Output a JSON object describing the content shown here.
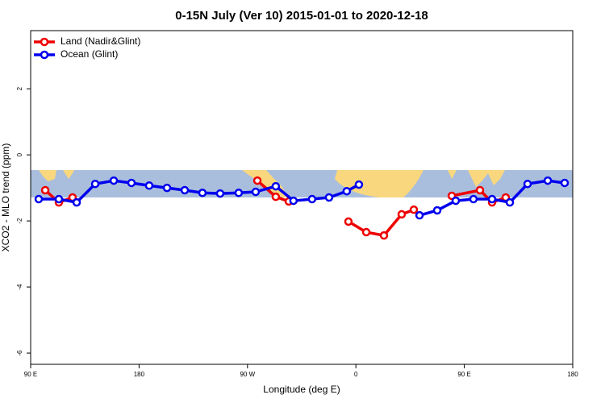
{
  "chart_data": {
    "type": "line",
    "title": "0-15N July (Ver 10)   2015-01-01 to 2020-12-18",
    "xlabel": "Longitude (deg E)",
    "ylabel": "XCO2 - MLO trend (ppm)",
    "xlim": [
      90,
      540
    ],
    "xticks": [
      {
        "value": 90,
        "label": "90 E"
      },
      180,
      {
        "value": 270,
        "label": "90 W"
      },
      {
        "value": 360,
        "label": "0"
      },
      {
        "value": 450,
        "label": "90 E"
      },
      {
        "value": 540,
        "label": "180"
      }
    ],
    "ylim": [
      -6.34,
      3.76
    ],
    "yticks": [
      -6,
      -4,
      -2,
      0,
      2
    ],
    "legend": "top-left",
    "series": [
      {
        "name": "Land (Nadir&Glint)",
        "color": "#ee0000",
        "x": [
          102.1,
          113.4,
          124.8,
          null,
          278.2,
          293.5,
          304.3,
          null,
          353.8,
          368.6,
          383.3,
          398.0,
          408.1,
          null,
          439.6,
          463.0,
          473.0,
          484.4
        ],
        "values": [
          -1.07,
          -1.44,
          -1.29,
          null,
          -0.78,
          -1.27,
          -1.41,
          null,
          -2.02,
          -2.34,
          -2.44,
          -1.8,
          -1.66,
          null,
          -1.24,
          -1.07,
          -1.44,
          -1.29
        ]
      },
      {
        "name": "Ocean (Glint)",
        "color": "#0000ee",
        "x": [
          96.7,
          113.4,
          128.2,
          143.6,
          159.0,
          173.7,
          188.4,
          203.2,
          217.9,
          232.6,
          247.3,
          262.7,
          276.8,
          293.5,
          308.2,
          323.6,
          337.7,
          352.4,
          362.5,
          null,
          412.8,
          427.5,
          442.9,
          457.6,
          473.0,
          487.8,
          502.5,
          519.3,
          533.3
        ],
        "values": [
          -1.34,
          -1.34,
          -1.44,
          -0.88,
          -0.78,
          -0.85,
          -0.93,
          -1.0,
          -1.07,
          -1.15,
          -1.17,
          -1.15,
          -1.12,
          -0.95,
          -1.39,
          -1.34,
          -1.29,
          -1.1,
          -0.9,
          null,
          -1.83,
          -1.68,
          -1.39,
          -1.34,
          -1.34,
          -1.44,
          -0.88,
          -0.78,
          -0.85
        ]
      }
    ]
  }
}
